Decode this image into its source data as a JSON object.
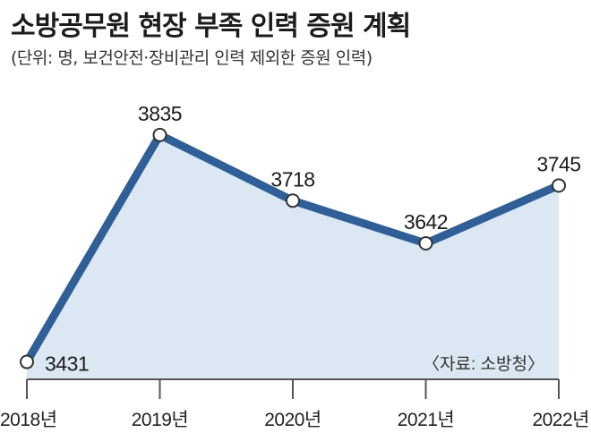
{
  "title": "소방공무원 현장 부족 인력 증원 계획",
  "subtitle": "(단위: 명, 보건안전·장비관리 인력 제외한 증원 인력)",
  "source": "〈자료: 소방청〉",
  "colors": {
    "line": "#2f5f96",
    "area": "#dbe7f3",
    "axis": "#555555",
    "marker_fill": "#ffffff"
  },
  "chart_data": {
    "type": "area",
    "categories": [
      "2018년",
      "2019년",
      "2020년",
      "2021년",
      "2022년"
    ],
    "values": [
      3431,
      3835,
      3718,
      3642,
      3745
    ],
    "value_labels": [
      "3431",
      "3835",
      "3718",
      "3642",
      "3745"
    ],
    "ylim": [
      3400,
      3900
    ],
    "grid": false,
    "legend": "none"
  }
}
